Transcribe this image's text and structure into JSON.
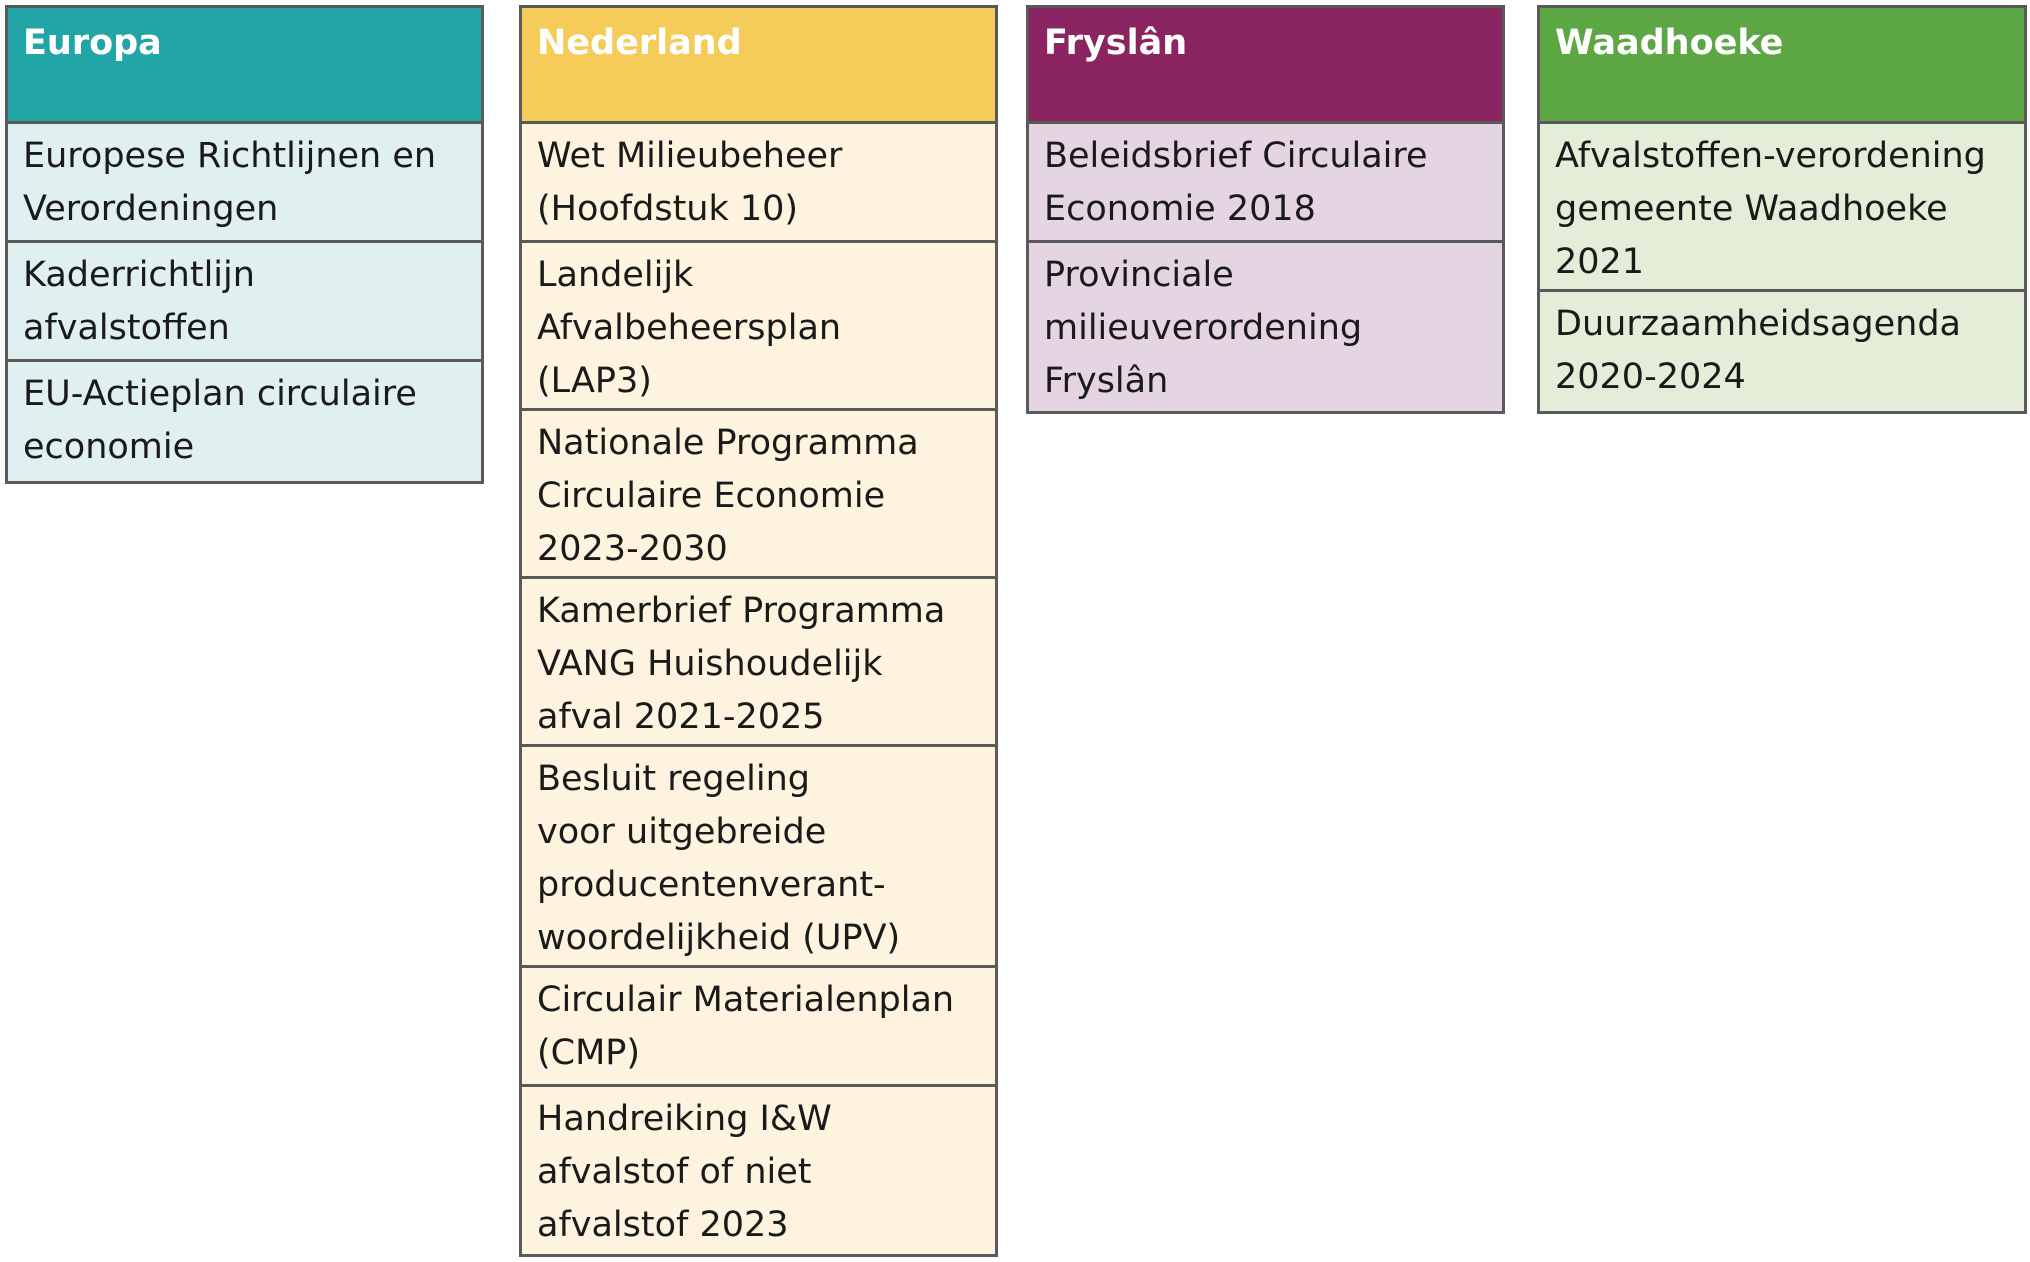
{
  "columns": [
    {
      "title": "Europa",
      "items": [
        "Europese Richtlijnen en\nVerordeningen",
        "Kaderrichtlijn\nafvalstoffen",
        "EU-Actieplan circulaire\neconomie"
      ]
    },
    {
      "title": "Nederland",
      "items": [
        "Wet Milieubeheer\n(Hoofdstuk 10)",
        "Landelijk\nAfvalbeheersplan\n(LAP3)",
        "Nationale Programma\nCirculaire Economie\n2023-2030",
        "Kamerbrief Programma\nVANG Huishoudelijk\nafval 2021-2025",
        "Besluit regeling\nvoor uitgebreide\nproducentenverant-\nwoordelijkheid (UPV)",
        "Circulair Materialenplan\n(CMP)",
        "Handreiking I&W\nafvalstof of niet\nafvalstof 2023"
      ]
    },
    {
      "title": "Fryslân",
      "items": [
        "Beleidsbrief Circulaire\nEconomie 2018",
        "Provinciale\nmilieuverordening\nFryslân"
      ]
    },
    {
      "title": "Waadhoeke",
      "items": [
        "Afvalstoffen-verordening\ngemeente Waadhoeke\n2021",
        "Duurzaamheidsagenda\n2020-2024"
      ]
    }
  ]
}
